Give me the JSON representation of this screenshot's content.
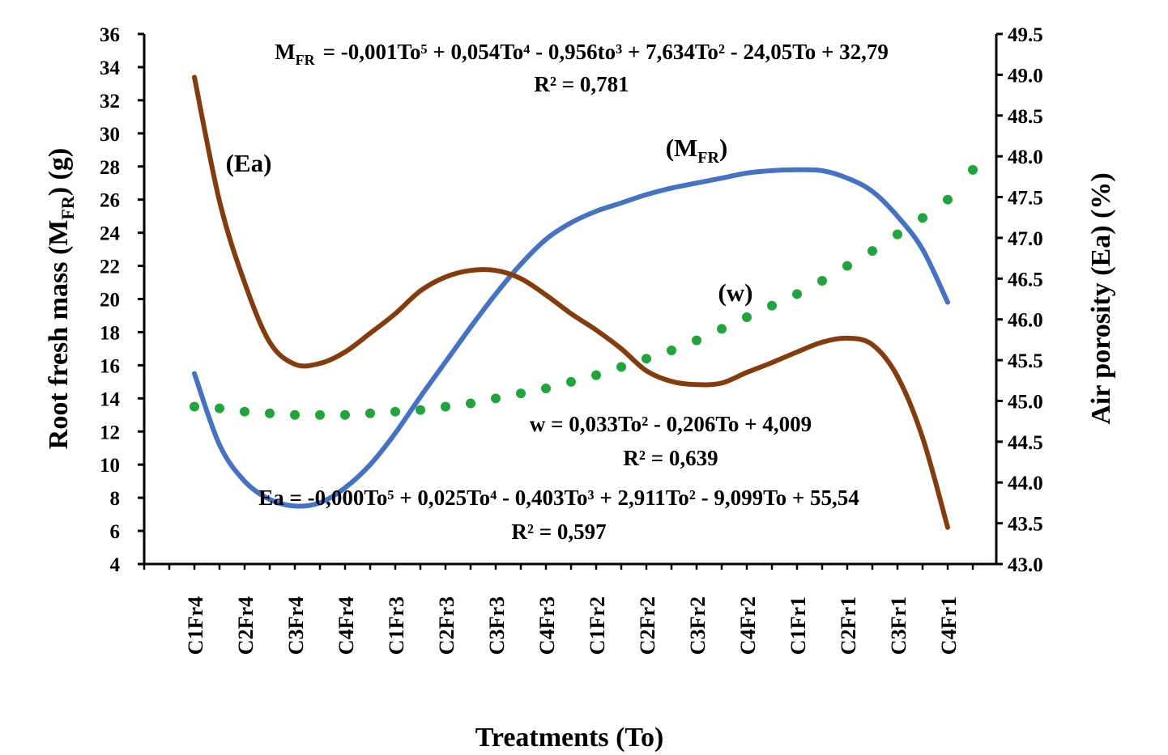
{
  "chart_data": {
    "type": "line",
    "xlabel": "Treatments  (To)",
    "ylabel_left_main": "Root fresh mass (M",
    "ylabel_left_sub": "FR",
    "ylabel_left_tail": ") (g)",
    "ylabel_right": "Air porosity  (Ea) (%)",
    "categories": [
      "C1Fr4",
      "C2Fr4",
      "C3Fr4",
      "C4Fr4",
      "C1Fr3",
      "C2Fr3",
      "C3Fr3",
      "C4Fr3",
      "C1Fr2",
      "C2Fr2",
      "C3Fr2",
      "C4Fr2",
      "C1Fr1",
      "C2Fr1",
      "C3Fr1",
      "C4Fr1"
    ],
    "y_left": {
      "min": 4,
      "max": 36,
      "step": 2,
      "tick_labels": [
        "4",
        "6",
        "8",
        "10",
        "12",
        "14",
        "16",
        "18",
        "20",
        "22",
        "24",
        "26",
        "28",
        "30",
        "32",
        "34",
        "36"
      ]
    },
    "y_right": {
      "min": 43.0,
      "max": 49.5,
      "step": 0.5,
      "tick_labels": [
        "43.0",
        "43.5",
        "44.0",
        "44.5",
        "45.0",
        "45.5",
        "46.0",
        "46.5",
        "47.0",
        "47.5",
        "48.0",
        "48.5",
        "49.0",
        "49.5"
      ]
    },
    "series": [
      {
        "key": "mfr",
        "label_main": "(M",
        "label_sub": "FR",
        "label_tail": ")",
        "color": "#4472C4",
        "axis": "left",
        "style": "solid",
        "x": [
          1,
          1.5,
          2,
          2.5,
          3,
          3.5,
          4,
          4.5,
          5,
          5.5,
          6,
          6.5,
          7,
          7.5,
          8,
          8.5,
          9,
          9.5,
          10,
          10.5,
          11,
          11.5,
          12,
          12.5,
          13,
          13.5,
          14,
          14.5,
          15,
          15.5,
          16
        ],
        "y": [
          15.5,
          11.2,
          9.0,
          7.9,
          7.5,
          7.7,
          8.6,
          10.0,
          11.9,
          14.1,
          16.2,
          18.3,
          20.3,
          22.1,
          23.6,
          24.6,
          25.3,
          25.8,
          26.3,
          26.7,
          27.0,
          27.3,
          27.6,
          27.75,
          27.8,
          27.75,
          27.3,
          26.5,
          25.0,
          23.0,
          19.8
        ]
      },
      {
        "key": "ea",
        "label": "(Ea)",
        "color": "#843C0C",
        "axis": "right",
        "style": "solid",
        "x": [
          1,
          1.5,
          2,
          2.5,
          3,
          3.5,
          4,
          4.5,
          5,
          5.5,
          6,
          6.5,
          7,
          7.5,
          8,
          8.5,
          9,
          9.5,
          10,
          10.5,
          11,
          11.5,
          12,
          12.5,
          13,
          13.5,
          14,
          14.5,
          15,
          15.5,
          16
        ],
        "y": [
          48.97,
          47.45,
          46.45,
          45.72,
          45.45,
          45.46,
          45.6,
          45.83,
          46.07,
          46.35,
          46.52,
          46.6,
          46.6,
          46.5,
          46.3,
          46.07,
          45.87,
          45.64,
          45.37,
          45.24,
          45.2,
          45.22,
          45.35,
          45.47,
          45.6,
          45.72,
          45.77,
          45.69,
          45.3,
          44.55,
          43.45
        ]
      },
      {
        "key": "w",
        "label": "(w)",
        "color": "#1FA63A",
        "axis": "left",
        "style": "dotted",
        "x": [
          1,
          1.5,
          2,
          2.5,
          3,
          3.5,
          4,
          4.5,
          5,
          5.5,
          6,
          6.5,
          7,
          7.5,
          8,
          8.5,
          9,
          9.5,
          10,
          10.5,
          11,
          11.5,
          12,
          12.5,
          13,
          13.5,
          14,
          14.5,
          15,
          15.5,
          16,
          16.5
        ],
        "y": [
          13.5,
          13.4,
          13.2,
          13.1,
          13.0,
          13.0,
          13.0,
          13.1,
          13.2,
          13.3,
          13.5,
          13.7,
          14.0,
          14.3,
          14.6,
          15.0,
          15.4,
          15.9,
          16.4,
          16.9,
          17.5,
          18.2,
          18.9,
          19.6,
          20.3,
          21.1,
          22.0,
          22.9,
          23.9,
          24.9,
          26.0,
          27.8
        ]
      }
    ],
    "equations": {
      "mfr_lhs_main": "M",
      "mfr_lhs_sub": "FR",
      "mfr_rhs": "= -0,001To⁵ + 0,054To⁴ - 0,956to³ + 7,634To² - 24,05To + 32,79",
      "mfr_r2": "R² = 0,781",
      "w_eq": "w = 0,033To² - 0,206To + 4,009",
      "w_r2": "R² = 0,639",
      "ea_eq": "Ea  = -0,000To⁵ + 0,025To⁴ - 0,403To³ + 2,911To² - 9,099To + 55,54",
      "ea_r2": "R² = 0,597"
    }
  }
}
